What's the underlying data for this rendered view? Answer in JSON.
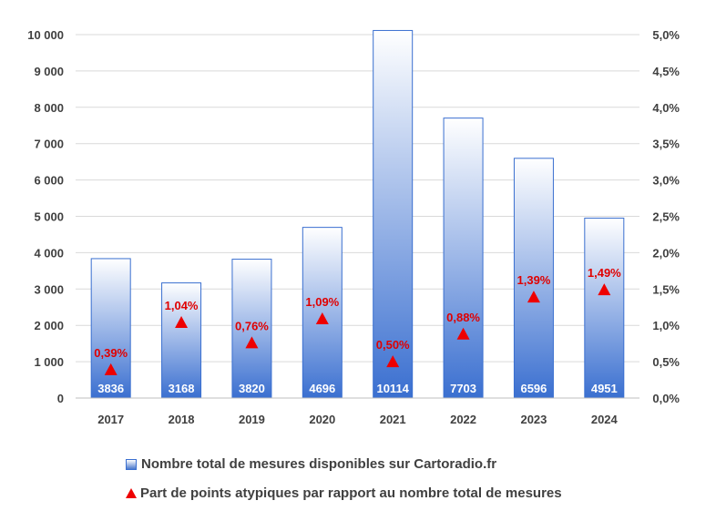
{
  "chart_data": {
    "type": "bar",
    "categories": [
      "2017",
      "2018",
      "2019",
      "2020",
      "2021",
      "2022",
      "2023",
      "2024"
    ],
    "series": [
      {
        "name": "Nombre total de mesures disponibles sur Cartoradio.fr",
        "type": "bar",
        "axis": "left",
        "values": [
          3836,
          3168,
          3820,
          4696,
          10114,
          7703,
          6596,
          4951
        ],
        "labels": [
          "3836",
          "3168",
          "3820",
          "4696",
          "10114",
          "7703",
          "6596",
          "4951"
        ]
      },
      {
        "name": "Part de points atypiques par rapport au nombre total de mesures",
        "type": "marker",
        "axis": "right",
        "values": [
          0.39,
          1.04,
          0.76,
          1.09,
          0.5,
          0.88,
          1.39,
          1.49
        ],
        "labels": [
          "0,39%",
          "1,04%",
          "0,76%",
          "1,09%",
          "0,50%",
          "0,88%",
          "1,39%",
          "1,49%"
        ]
      }
    ],
    "y_left": {
      "ylim": [
        0,
        10000
      ],
      "ticks": [
        0,
        1000,
        2000,
        3000,
        4000,
        5000,
        6000,
        7000,
        8000,
        9000,
        10000
      ],
      "tick_labels": [
        "0",
        "1 000",
        "2 000",
        "3 000",
        "4 000",
        "5 000",
        "6 000",
        "7 000",
        "8 000",
        "9 000",
        "10 000"
      ]
    },
    "y_right": {
      "ylim": [
        0,
        5.0
      ],
      "ticks": [
        0,
        0.5,
        1.0,
        1.5,
        2.0,
        2.5,
        3.0,
        3.5,
        4.0,
        4.5,
        5.0
      ],
      "tick_labels": [
        "0,0%",
        "0,5%",
        "1,0%",
        "1,5%",
        "2,0%",
        "2,5%",
        "3,0%",
        "3,5%",
        "4,0%",
        "4,5%",
        "5,0%"
      ]
    },
    "grid": true,
    "legend_position": "bottom",
    "colors": {
      "bar_top": "#ffffff",
      "bar_bottom": "#3a6fd0",
      "bar_border": "#3a6fd0",
      "marker": "#ee0000",
      "marker_label": "#e00000",
      "bar_label": "#ffffff",
      "grid": "#d9d9d9",
      "tick_text": "#404040"
    }
  }
}
